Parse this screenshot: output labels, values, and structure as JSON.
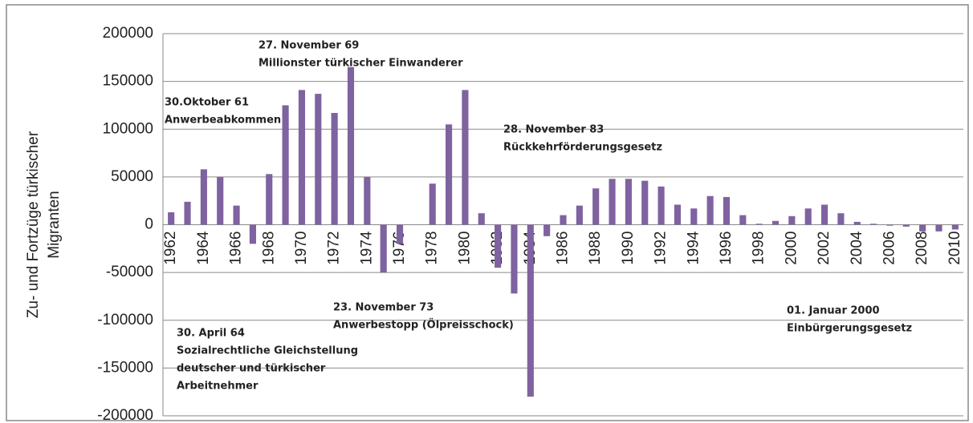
{
  "chart_data": {
    "type": "bar",
    "y_label_lines": [
      "Zu- und Fortzüge türkischer",
      "Migranten"
    ],
    "categories": [
      "1962",
      null,
      "1964",
      null,
      "1966",
      null,
      "1968",
      null,
      "1970",
      null,
      "1972",
      null,
      "1974",
      null,
      "1976",
      null,
      "1978",
      null,
      "1980",
      null,
      "1982",
      null,
      "1984",
      null,
      "1986",
      null,
      "1988",
      null,
      "1990",
      null,
      "1992",
      null,
      "1994",
      null,
      "1996",
      null,
      "1998",
      null,
      "2000",
      null,
      "2002",
      null,
      "2004",
      null,
      "2006",
      null,
      "2008",
      null,
      "2010"
    ],
    "values": [
      13000,
      24000,
      58000,
      50000,
      20000,
      -20000,
      53000,
      125000,
      141000,
      137000,
      117000,
      165000,
      50000,
      -50000,
      -20000,
      0,
      43000,
      105000,
      141000,
      12000,
      -45000,
      -72000,
      -180000,
      -12000,
      10000,
      20000,
      38000,
      48000,
      48000,
      46000,
      40000,
      21000,
      17000,
      30000,
      29000,
      10000,
      1000,
      4000,
      9000,
      17000,
      21000,
      12000,
      3000,
      1000,
      -1000,
      -2000,
      -7000,
      -7000,
      -5000
    ],
    "color": "#7f62a0",
    "ylim": [
      -200000,
      200000
    ],
    "yticks": [
      -200000,
      -150000,
      -100000,
      -50000,
      0,
      50000,
      100000,
      150000,
      200000
    ],
    "grid": true,
    "annotations": [
      {
        "lines": [
          "30.Oktober 61",
          "Anwerbeabkommen"
        ]
      },
      {
        "lines": [
          "27. November 69",
          "Millionster türkischer Einwanderer"
        ]
      },
      {
        "lines": [
          "28. November 83",
          "Rückkehrförderungsgesetz"
        ]
      },
      {
        "lines": [
          "30. April 64",
          "Sozialrechtliche Gleichstellung",
          "deutscher und türkischer",
          "Arbeitnehmer"
        ]
      },
      {
        "lines": [
          "23. November 73",
          "Anwerbestopp (Ölpreisschock)"
        ]
      },
      {
        "lines": [
          "01. Januar 2000",
          "Einbürgerungsgesetz"
        ]
      }
    ]
  }
}
